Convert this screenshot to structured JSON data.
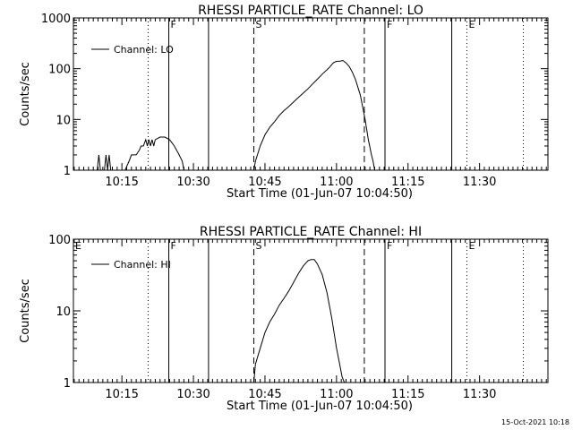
{
  "footer": {
    "timestamp": "15-Oct-2021 10:18"
  },
  "chart_data": [
    {
      "type": "line",
      "title": "RHESSI PARTICLE_RATE Channel: LO",
      "xlabel": "Start Time (01-Jun-07 10:04:50)",
      "ylabel": "Counts/sec",
      "xlim": [
        "10:04:50",
        "11:44:20"
      ],
      "ylim": [
        1,
        1000
      ],
      "yscale": "log",
      "x_ticks": [
        "10:15",
        "10:30",
        "10:45",
        "11:00",
        "11:15",
        "11:30"
      ],
      "y_ticks": [
        "1",
        "10",
        "100",
        "1000"
      ],
      "legend": {
        "placement": "top-left",
        "entries": [
          "Channel: LO"
        ]
      },
      "series": [
        {
          "name": "Channel: LO",
          "x": [
            "10:09:50",
            "10:10:10",
            "10:10:30",
            "10:11:20",
            "10:11:40",
            "10:12:00",
            "10:12:20",
            "10:12:40",
            "10:13:00",
            "10:15:40",
            "10:16:30",
            "10:17:00",
            "10:18:00",
            "10:18:40",
            "10:19:00",
            "10:19:30",
            "10:20:00",
            "10:20:20",
            "10:20:40",
            "10:21:00",
            "10:21:20",
            "10:21:40",
            "10:22:00",
            "10:23:00",
            "10:24:00",
            "10:25:00",
            "10:26:00",
            "10:27:00",
            "10:27:40",
            "10:28:00",
            "10:42:40",
            "10:43:00",
            "10:44:00",
            "10:45:00",
            "10:46:00",
            "10:47:00",
            "10:48:00",
            "10:49:00",
            "10:50:00",
            "10:51:00",
            "10:52:00",
            "10:53:00",
            "10:54:00",
            "10:55:00",
            "10:56:00",
            "10:57:00",
            "10:58:00",
            "10:58:40",
            "10:59:20",
            "11:00:00",
            "11:00:40",
            "11:01:20",
            "11:02:00",
            "11:02:40",
            "11:03:20",
            "11:04:00",
            "11:05:00",
            "11:06:00",
            "11:06:40",
            "11:07:20",
            "11:07:40",
            "11:08:00"
          ],
          "values": [
            1,
            2,
            1,
            1,
            2,
            1,
            2,
            1,
            1,
            1,
            1.5,
            2,
            2,
            2.5,
            3,
            3,
            4,
            3,
            4,
            3,
            4,
            3,
            4,
            4.5,
            4.5,
            4,
            3,
            2,
            1.5,
            1,
            1,
            1.5,
            3,
            5,
            7,
            9,
            12,
            15,
            18,
            22,
            27,
            33,
            40,
            50,
            62,
            78,
            95,
            110,
            130,
            140,
            140,
            145,
            130,
            110,
            85,
            60,
            30,
            10,
            4,
            2,
            1.5,
            1
          ]
        }
      ],
      "markers": [
        {
          "x": "10:04:50",
          "style": "solid",
          "label": ""
        },
        {
          "x": "10:20:30",
          "style": "dotted",
          "label": ""
        },
        {
          "x": "10:24:50",
          "style": "solid",
          "label": "F"
        },
        {
          "x": "10:33:10",
          "style": "solid",
          "label": ""
        },
        {
          "x": "10:42:40",
          "style": "dashed",
          "label": "S"
        },
        {
          "x": "11:05:50",
          "style": "dashed",
          "label": ""
        },
        {
          "x": "11:10:10",
          "style": "solid",
          "label": "F"
        },
        {
          "x": "11:24:10",
          "style": "solid",
          "label": ""
        },
        {
          "x": "11:27:20",
          "style": "dotted",
          "label": "E"
        },
        {
          "x": "11:39:10",
          "style": "dotted",
          "label": ""
        }
      ]
    },
    {
      "type": "line",
      "title": "RHESSI PARTICLE_RATE Channel: HI",
      "xlabel": "Start Time (01-Jun-07 10:04:50)",
      "ylabel": "Counts/sec",
      "xlim": [
        "10:04:50",
        "11:44:20"
      ],
      "ylim": [
        1,
        100
      ],
      "yscale": "log",
      "x_ticks": [
        "10:15",
        "10:30",
        "10:45",
        "11:00",
        "11:15",
        "11:30"
      ],
      "y_ticks": [
        "1",
        "10",
        "100"
      ],
      "legend": {
        "placement": "top-left",
        "entries": [
          "Channel: HI"
        ]
      },
      "series": [
        {
          "name": "Channel: HI",
          "x": [
            "10:42:40",
            "10:43:00",
            "10:44:00",
            "10:45:00",
            "10:46:00",
            "10:47:00",
            "10:48:00",
            "10:49:00",
            "10:50:00",
            "10:51:00",
            "10:52:00",
            "10:53:00",
            "10:54:00",
            "10:54:40",
            "10:55:20",
            "10:56:00",
            "10:57:00",
            "10:58:00",
            "10:59:00",
            "11:00:00",
            "11:00:40",
            "11:01:10",
            "11:01:40"
          ],
          "values": [
            1,
            1.8,
            3,
            5,
            7,
            9,
            12,
            15,
            19,
            25,
            33,
            42,
            50,
            52,
            52,
            45,
            32,
            18,
            8,
            3,
            1.8,
            1.2,
            1
          ]
        }
      ],
      "markers": [
        {
          "x": "10:04:50",
          "style": "solid",
          "label": "E"
        },
        {
          "x": "10:20:30",
          "style": "dotted",
          "label": ""
        },
        {
          "x": "10:24:50",
          "style": "solid",
          "label": "F"
        },
        {
          "x": "10:33:10",
          "style": "solid",
          "label": ""
        },
        {
          "x": "10:42:40",
          "style": "dashed",
          "label": "S"
        },
        {
          "x": "11:05:50",
          "style": "dashed",
          "label": ""
        },
        {
          "x": "11:10:10",
          "style": "solid",
          "label": "F"
        },
        {
          "x": "11:24:10",
          "style": "solid",
          "label": ""
        },
        {
          "x": "11:27:20",
          "style": "dotted",
          "label": "E"
        },
        {
          "x": "11:39:10",
          "style": "dotted",
          "label": ""
        }
      ]
    }
  ]
}
